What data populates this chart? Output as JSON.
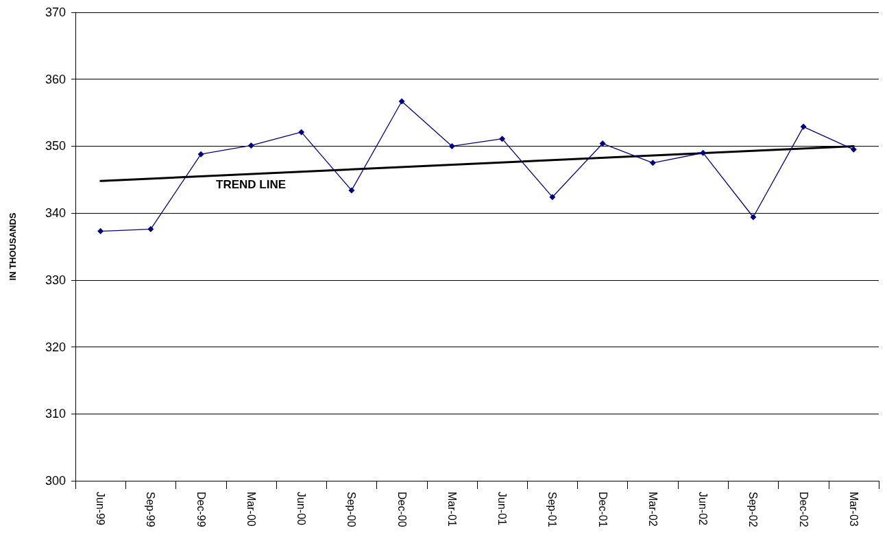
{
  "chart_data": {
    "type": "line",
    "ylabel": "IN THOUSANDS",
    "categories": [
      "Jun-99",
      "Sep-99",
      "Dec-99",
      "Mar-00",
      "Jun-00",
      "Sep-00",
      "Dec-00",
      "Mar-01",
      "Jun-01",
      "Sep-01",
      "Dec-01",
      "Mar-02",
      "Jun-02",
      "Sep-02",
      "Dec-02",
      "Mar-03"
    ],
    "series": [
      {
        "color": "#000080",
        "values": [
          337.3,
          337.6,
          348.8,
          350.1,
          352.1,
          343.4,
          356.7,
          350.0,
          351.1,
          342.4,
          350.4,
          347.5,
          349.0,
          339.4,
          352.9,
          349.5
        ]
      },
      {
        "type": "line",
        "color": "#000000",
        "marker": "none",
        "x": [
          "Jun-99",
          "Mar-03"
        ],
        "values": [
          344.8,
          350.0
        ]
      }
    ],
    "marker": "diamond",
    "ylim": [
      300,
      370
    ],
    "yticks": [
      300,
      310,
      320,
      330,
      340,
      350,
      360,
      370
    ],
    "grid": "y",
    "annotations": [
      "TREND LINE"
    ]
  }
}
